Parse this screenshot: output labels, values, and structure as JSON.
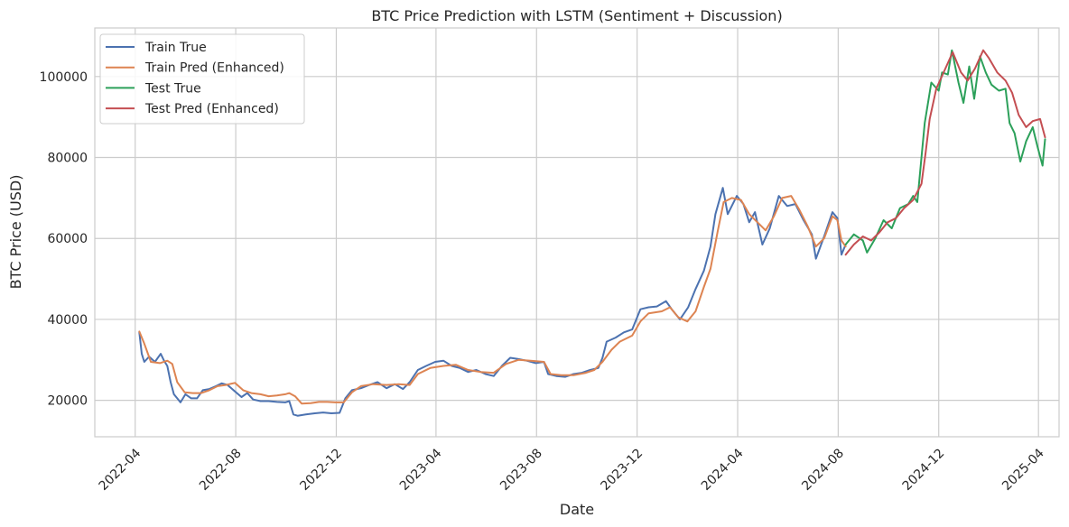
{
  "chart_data": {
    "type": "line",
    "title": "BTC Price Prediction with LSTM (Sentiment + Discussion)",
    "xlabel": "Date",
    "ylabel": "BTC Price (USD)",
    "xlim": [
      "2022-02-11",
      "2025-04-26"
    ],
    "ylim": [
      11000,
      112000
    ],
    "grid": true,
    "legend_position": "top-left",
    "x_ticks": [
      "2022-04-01",
      "2022-08-01",
      "2022-12-01",
      "2023-04-01",
      "2023-08-01",
      "2023-12-01",
      "2024-04-01",
      "2024-08-01",
      "2024-12-01",
      "2025-04-01"
    ],
    "x_tick_labels": [
      "2022-04",
      "2022-08",
      "2022-12",
      "2023-04",
      "2023-08",
      "2023-12",
      "2024-04",
      "2024-08",
      "2024-12",
      "2025-04"
    ],
    "y_ticks": [
      20000,
      40000,
      60000,
      80000,
      100000
    ],
    "y_tick_labels": [
      "20000",
      "40000",
      "60000",
      "80000",
      "100000"
    ],
    "series": [
      {
        "name": "Train True",
        "color": "#4c72b0",
        "points": [
          [
            "2022-04-06",
            36800
          ],
          [
            "2022-04-09",
            31500
          ],
          [
            "2022-04-12",
            29500
          ],
          [
            "2022-04-18",
            30800
          ],
          [
            "2022-04-25",
            29500
          ],
          [
            "2022-05-02",
            31500
          ],
          [
            "2022-05-06",
            29800
          ],
          [
            "2022-05-10",
            28500
          ],
          [
            "2022-05-14",
            24500
          ],
          [
            "2022-05-18",
            21500
          ],
          [
            "2022-05-22",
            20500
          ],
          [
            "2022-05-26",
            19500
          ],
          [
            "2022-06-01",
            21500
          ],
          [
            "2022-06-08",
            20500
          ],
          [
            "2022-06-15",
            20500
          ],
          [
            "2022-06-22",
            22500
          ],
          [
            "2022-06-30",
            22800
          ],
          [
            "2022-07-08",
            23500
          ],
          [
            "2022-07-15",
            24200
          ],
          [
            "2022-07-22",
            23800
          ],
          [
            "2022-07-31",
            22200
          ],
          [
            "2022-08-08",
            20800
          ],
          [
            "2022-08-15",
            21800
          ],
          [
            "2022-08-22",
            20200
          ],
          [
            "2022-08-31",
            19800
          ],
          [
            "2022-09-10",
            19800
          ],
          [
            "2022-09-20",
            19600
          ],
          [
            "2022-09-30",
            19500
          ],
          [
            "2022-10-05",
            19800
          ],
          [
            "2022-10-10",
            16500
          ],
          [
            "2022-10-15",
            16200
          ],
          [
            "2022-10-25",
            16500
          ],
          [
            "2022-11-05",
            16800
          ],
          [
            "2022-11-15",
            17000
          ],
          [
            "2022-11-25",
            16800
          ],
          [
            "2022-12-05",
            16900
          ],
          [
            "2022-12-12",
            20500
          ],
          [
            "2022-12-20",
            22500
          ],
          [
            "2022-12-31",
            23000
          ],
          [
            "2023-01-10",
            23800
          ],
          [
            "2023-01-20",
            24500
          ],
          [
            "2023-01-31",
            23000
          ],
          [
            "2023-02-10",
            24000
          ],
          [
            "2023-02-20",
            22800
          ],
          [
            "2023-02-28",
            24500
          ],
          [
            "2023-03-10",
            27500
          ],
          [
            "2023-03-20",
            28500
          ],
          [
            "2023-03-31",
            29500
          ],
          [
            "2023-04-10",
            29800
          ],
          [
            "2023-04-20",
            28500
          ],
          [
            "2023-04-30",
            28000
          ],
          [
            "2023-05-10",
            27000
          ],
          [
            "2023-05-20",
            27500
          ],
          [
            "2023-05-31",
            26500
          ],
          [
            "2023-06-10",
            26000
          ],
          [
            "2023-06-20",
            28500
          ],
          [
            "2023-06-30",
            30500
          ],
          [
            "2023-07-10",
            30200
          ],
          [
            "2023-07-20",
            29800
          ],
          [
            "2023-07-31",
            29200
          ],
          [
            "2023-08-10",
            29500
          ],
          [
            "2023-08-15",
            26500
          ],
          [
            "2023-08-25",
            26000
          ],
          [
            "2023-09-05",
            25800
          ],
          [
            "2023-09-15",
            26500
          ],
          [
            "2023-09-25",
            26800
          ],
          [
            "2023-10-05",
            27500
          ],
          [
            "2023-10-15",
            28000
          ],
          [
            "2023-10-20",
            30500
          ],
          [
            "2023-10-25",
            34500
          ],
          [
            "2023-11-05",
            35500
          ],
          [
            "2023-11-15",
            36800
          ],
          [
            "2023-11-25",
            37500
          ],
          [
            "2023-12-05",
            42500
          ],
          [
            "2023-12-15",
            43000
          ],
          [
            "2023-12-25",
            43200
          ],
          [
            "2024-01-05",
            44500
          ],
          [
            "2024-01-12",
            42500
          ],
          [
            "2024-01-22",
            40000
          ],
          [
            "2024-02-01",
            43000
          ],
          [
            "2024-02-10",
            47500
          ],
          [
            "2024-02-20",
            52000
          ],
          [
            "2024-02-28",
            58000
          ],
          [
            "2024-03-05",
            66000
          ],
          [
            "2024-03-14",
            72500
          ],
          [
            "2024-03-20",
            66000
          ],
          [
            "2024-03-31",
            70500
          ],
          [
            "2024-04-08",
            68500
          ],
          [
            "2024-04-15",
            64000
          ],
          [
            "2024-04-22",
            66500
          ],
          [
            "2024-05-01",
            58500
          ],
          [
            "2024-05-10",
            62500
          ],
          [
            "2024-05-21",
            70500
          ],
          [
            "2024-05-31",
            68000
          ],
          [
            "2024-06-10",
            68500
          ],
          [
            "2024-06-20",
            64500
          ],
          [
            "2024-06-30",
            61000
          ],
          [
            "2024-07-05",
            55000
          ],
          [
            "2024-07-15",
            60500
          ],
          [
            "2024-07-25",
            66500
          ],
          [
            "2024-07-31",
            65000
          ],
          [
            "2024-08-05",
            56000
          ],
          [
            "2024-08-10",
            58500
          ]
        ]
      },
      {
        "name": "Train Pred (Enhanced)",
        "color": "#dd8452",
        "points": [
          [
            "2022-04-06",
            37000
          ],
          [
            "2022-04-12",
            34000
          ],
          [
            "2022-04-20",
            29500
          ],
          [
            "2022-05-01",
            29200
          ],
          [
            "2022-05-10",
            29800
          ],
          [
            "2022-05-16",
            29000
          ],
          [
            "2022-05-22",
            24500
          ],
          [
            "2022-05-31",
            22000
          ],
          [
            "2022-06-10",
            21800
          ],
          [
            "2022-06-20",
            21800
          ],
          [
            "2022-06-30",
            22500
          ],
          [
            "2022-07-10",
            23500
          ],
          [
            "2022-07-20",
            23800
          ],
          [
            "2022-07-31",
            24300
          ],
          [
            "2022-08-10",
            22500
          ],
          [
            "2022-08-20",
            21800
          ],
          [
            "2022-08-31",
            21500
          ],
          [
            "2022-09-10",
            21000
          ],
          [
            "2022-09-20",
            21200
          ],
          [
            "2022-09-30",
            21500
          ],
          [
            "2022-10-05",
            21800
          ],
          [
            "2022-10-12",
            21000
          ],
          [
            "2022-10-20",
            19200
          ],
          [
            "2022-10-31",
            19300
          ],
          [
            "2022-11-10",
            19600
          ],
          [
            "2022-11-20",
            19600
          ],
          [
            "2022-11-30",
            19500
          ],
          [
            "2022-12-10",
            19500
          ],
          [
            "2022-12-20",
            22000
          ],
          [
            "2022-12-31",
            23500
          ],
          [
            "2023-01-15",
            24000
          ],
          [
            "2023-01-31",
            23800
          ],
          [
            "2023-02-15",
            24000
          ],
          [
            "2023-02-28",
            23800
          ],
          [
            "2023-03-10",
            26500
          ],
          [
            "2023-03-25",
            28000
          ],
          [
            "2023-04-10",
            28500
          ],
          [
            "2023-04-25",
            28800
          ],
          [
            "2023-05-10",
            27500
          ],
          [
            "2023-05-25",
            27000
          ],
          [
            "2023-06-10",
            26800
          ],
          [
            "2023-06-25",
            29000
          ],
          [
            "2023-07-10",
            30000
          ],
          [
            "2023-07-25",
            29800
          ],
          [
            "2023-08-10",
            29500
          ],
          [
            "2023-08-18",
            26500
          ],
          [
            "2023-08-31",
            26200
          ],
          [
            "2023-09-15",
            26200
          ],
          [
            "2023-09-30",
            26800
          ],
          [
            "2023-10-10",
            27500
          ],
          [
            "2023-10-20",
            29500
          ],
          [
            "2023-10-31",
            32500
          ],
          [
            "2023-11-10",
            34500
          ],
          [
            "2023-11-25",
            36000
          ],
          [
            "2023-12-05",
            39500
          ],
          [
            "2023-12-15",
            41500
          ],
          [
            "2023-12-31",
            42000
          ],
          [
            "2024-01-10",
            43000
          ],
          [
            "2024-01-20",
            40500
          ],
          [
            "2024-01-31",
            39500
          ],
          [
            "2024-02-10",
            42000
          ],
          [
            "2024-02-20",
            48000
          ],
          [
            "2024-02-28",
            52500
          ],
          [
            "2024-03-08",
            62000
          ],
          [
            "2024-03-15",
            69000
          ],
          [
            "2024-03-25",
            70000
          ],
          [
            "2024-04-05",
            69500
          ],
          [
            "2024-04-15",
            66000
          ],
          [
            "2024-04-25",
            64000
          ],
          [
            "2024-05-05",
            62000
          ],
          [
            "2024-05-15",
            65500
          ],
          [
            "2024-05-25",
            70000
          ],
          [
            "2024-06-05",
            70500
          ],
          [
            "2024-06-15",
            67000
          ],
          [
            "2024-06-25",
            63000
          ],
          [
            "2024-07-05",
            58000
          ],
          [
            "2024-07-15",
            60000
          ],
          [
            "2024-07-25",
            65500
          ],
          [
            "2024-07-31",
            64500
          ],
          [
            "2024-08-05",
            59500
          ],
          [
            "2024-08-10",
            58000
          ]
        ]
      },
      {
        "name": "Test True",
        "color": "#2ca05a",
        "points": [
          [
            "2024-08-10",
            58500
          ],
          [
            "2024-08-20",
            61000
          ],
          [
            "2024-08-31",
            59500
          ],
          [
            "2024-09-05",
            56500
          ],
          [
            "2024-09-15",
            60000
          ],
          [
            "2024-09-25",
            64500
          ],
          [
            "2024-10-05",
            62500
          ],
          [
            "2024-10-15",
            67500
          ],
          [
            "2024-10-25",
            68500
          ],
          [
            "2024-10-31",
            70500
          ],
          [
            "2024-11-05",
            69000
          ],
          [
            "2024-11-10",
            80000
          ],
          [
            "2024-11-14",
            88500
          ],
          [
            "2024-11-22",
            98500
          ],
          [
            "2024-12-01",
            96500
          ],
          [
            "2024-12-05",
            101000
          ],
          [
            "2024-12-12",
            100500
          ],
          [
            "2024-12-17",
            106500
          ],
          [
            "2024-12-25",
            98500
          ],
          [
            "2024-12-31",
            93500
          ],
          [
            "2025-01-07",
            102500
          ],
          [
            "2025-01-13",
            94500
          ],
          [
            "2025-01-20",
            105000
          ],
          [
            "2025-01-27",
            101000
          ],
          [
            "2025-02-03",
            98000
          ],
          [
            "2025-02-12",
            96500
          ],
          [
            "2025-02-20",
            97000
          ],
          [
            "2025-02-25",
            88500
          ],
          [
            "2025-03-03",
            86000
          ],
          [
            "2025-03-10",
            79000
          ],
          [
            "2025-03-17",
            84000
          ],
          [
            "2025-03-25",
            87500
          ],
          [
            "2025-03-31",
            82500
          ],
          [
            "2025-04-06",
            78000
          ],
          [
            "2025-04-09",
            84500
          ]
        ]
      },
      {
        "name": "Test Pred (Enhanced)",
        "color": "#c44e52",
        "points": [
          [
            "2024-08-10",
            56000
          ],
          [
            "2024-08-20",
            58500
          ],
          [
            "2024-08-31",
            60500
          ],
          [
            "2024-09-10",
            59500
          ],
          [
            "2024-09-20",
            61500
          ],
          [
            "2024-09-30",
            64000
          ],
          [
            "2024-10-10",
            65000
          ],
          [
            "2024-10-20",
            67500
          ],
          [
            "2024-10-31",
            69500
          ],
          [
            "2024-11-10",
            73500
          ],
          [
            "2024-11-15",
            81000
          ],
          [
            "2024-11-20",
            89500
          ],
          [
            "2024-11-28",
            97000
          ],
          [
            "2024-12-08",
            101500
          ],
          [
            "2024-12-18",
            106000
          ],
          [
            "2024-12-28",
            101000
          ],
          [
            "2025-01-05",
            99000
          ],
          [
            "2025-01-14",
            102000
          ],
          [
            "2025-01-24",
            106500
          ],
          [
            "2025-01-31",
            104500
          ],
          [
            "2025-02-10",
            101000
          ],
          [
            "2025-02-20",
            99000
          ],
          [
            "2025-02-28",
            96000
          ],
          [
            "2025-03-08",
            90500
          ],
          [
            "2025-03-17",
            87500
          ],
          [
            "2025-03-25",
            89000
          ],
          [
            "2025-04-03",
            89500
          ],
          [
            "2025-04-09",
            85000
          ]
        ]
      }
    ]
  }
}
